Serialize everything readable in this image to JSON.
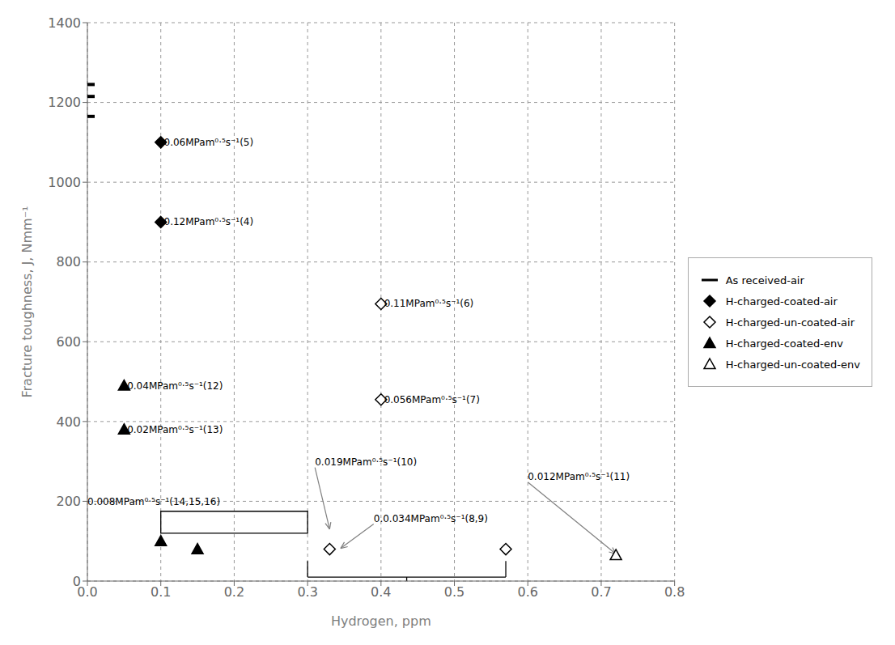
{
  "chart_data": {
    "type": "scatter",
    "xlabel": "Hydrogen, ppm",
    "ylabel": "Fracture toughness, J, Nmm⁻¹",
    "xlim": [
      0,
      0.8
    ],
    "ylim": [
      0,
      1400
    ],
    "xticks": [
      {
        "value": 0,
        "label": "0.0"
      },
      0.1,
      0.2,
      0.3,
      0.4,
      0.5,
      0.6,
      0.7,
      0.8
    ],
    "yticks": [
      0,
      200,
      400,
      600,
      800,
      1000,
      1200,
      1400
    ],
    "grid": true,
    "legend": "right",
    "series": [
      {
        "name": "As received-air",
        "color": "#000000",
        "marker": "dash",
        "x": [
          0,
          0,
          0
        ],
        "values": [
          1245,
          1215,
          1165
        ]
      },
      {
        "name": "H-charged-coated-air",
        "color": "#000000",
        "marker": "diamond",
        "x": [
          0.1,
          0.1
        ],
        "values": [
          1100,
          900
        ]
      },
      {
        "name": "H-charged-un-coated-air",
        "color": "#000000",
        "marker": "diamond_open",
        "x": [
          0.4,
          0.4,
          0.33,
          0.57
        ],
        "values": [
          695,
          455,
          80,
          80
        ]
      },
      {
        "name": "H-charged-coated-env",
        "color": "#000000",
        "marker": "triangle",
        "x": [
          0.05,
          0.05,
          0.1,
          0.15
        ],
        "values": [
          490,
          380,
          100,
          80
        ]
      },
      {
        "name": "H-charged-un-coated-env",
        "color": "#000000",
        "marker": "triangle_open",
        "x": [
          0.72
        ],
        "values": [
          65
        ]
      }
    ],
    "annotations": [
      {
        "text": " 0.06MPam⁰·⁵s⁻¹(5)",
        "x": 0.1,
        "y": 1100
      },
      {
        "text": " 0.12MPam⁰·⁵s⁻¹(4)",
        "x": 0.1,
        "y": 900
      },
      {
        "text": " 0.11MPam⁰·⁵s⁻¹(6)",
        "x": 0.4,
        "y": 695
      },
      {
        "text": " 0.056MPam⁰·⁵s⁻¹(7)",
        "x": 0.4,
        "y": 455
      },
      {
        "text": " 0.04MPam⁰·⁵s⁻¹(12)",
        "x": 0.05,
        "y": 490
      },
      {
        "text": " 0.02MPam⁰·⁵s⁻¹(13)",
        "x": 0.05,
        "y": 380
      },
      {
        "text": "0.019MPam⁰·⁵s⁻¹(10)",
        "x": 0.31,
        "y": 285,
        "arrow_x": 0.33,
        "arrow_y": 130
      },
      {
        "text": "0.0.034MPam⁰·⁵s⁻¹(8,9)",
        "x": 0.39,
        "y": 143,
        "arrow_x": 0.345,
        "arrow_y": 82
      },
      {
        "text": "0.012MPam⁰·⁵s⁻¹(11)",
        "x": 0.6,
        "y": 248,
        "arrow_x": 0.72,
        "arrow_y": 68
      }
    ],
    "shapes": [
      {
        "type": "rect",
        "x1": 0.1,
        "x2": 0.3,
        "y1": 120,
        "y2": 175,
        "text": "0.008MPam⁰·⁵s⁻¹(14,15,16)",
        "text_x": 0.0,
        "text_y": 185
      },
      {
        "type": "bracket",
        "x1": 0.3,
        "x2": 0.57,
        "y_top": 50,
        "y_bottom": 10,
        "tick_x": 0.435
      }
    ]
  }
}
